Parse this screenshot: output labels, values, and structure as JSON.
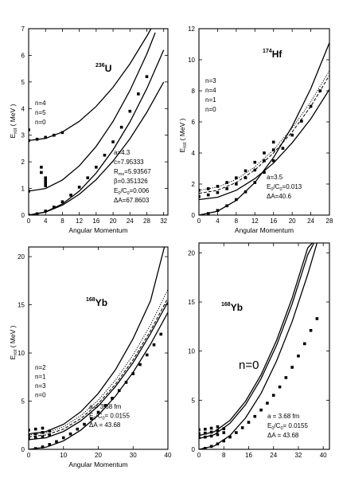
{
  "chart_data": [
    {
      "type": "line",
      "nucleus_mass": "236",
      "nucleus_symbol": "U",
      "ylabel_main": "E",
      "ylabel_sub": "rot",
      "ylabel_unit": " ( MeV )",
      "xlabel": "Angular Momentum",
      "xlim": [
        0,
        33
      ],
      "ylim": [
        0,
        7
      ],
      "x_ticks": [
        "0",
        "4",
        "8",
        "12",
        "16",
        "20",
        "24",
        "28",
        "32"
      ],
      "y_ticks": [
        "0",
        "1",
        "2",
        "3",
        "4",
        "5",
        "6",
        "7"
      ],
      "legend_lines": [
        "n=4",
        "n=5",
        "n=0"
      ],
      "params": [
        "a=4.3",
        "c=7.95333",
        "R",
        "ms",
        "=5.93567",
        "β=0.351326",
        "E",
        "0",
        "/C",
        "0",
        "=0.006",
        "ΔA=67.8603"
      ],
      "series": [
        {
          "style": "solid",
          "x": [
            0,
            4,
            8,
            12,
            16,
            20,
            24,
            28,
            32
          ],
          "y": [
            0.0,
            0.11,
            0.37,
            0.78,
            1.33,
            2.03,
            2.87,
            3.86,
            5.0
          ]
        },
        {
          "style": "solid",
          "x": [
            0,
            4,
            8,
            12,
            16,
            20,
            24,
            28,
            32
          ],
          "y": [
            0.0,
            0.12,
            0.42,
            0.9,
            1.58,
            2.45,
            3.5,
            4.75,
            6.2
          ]
        },
        {
          "style": "solid",
          "x": [
            0,
            4,
            8,
            12,
            16,
            20,
            24,
            28,
            30
          ],
          "y": [
            0.9,
            1.0,
            1.32,
            1.85,
            2.58,
            3.52,
            4.68,
            6.05,
            6.85
          ]
        },
        {
          "style": "solid",
          "x": [
            0,
            4,
            8,
            12,
            16,
            20,
            24,
            28,
            29
          ],
          "y": [
            2.8,
            2.88,
            3.12,
            3.52,
            4.08,
            4.8,
            5.68,
            6.72,
            7.0
          ]
        }
      ],
      "points": [
        {
          "x": [
            0,
            2,
            4,
            6,
            8,
            10,
            12,
            14,
            16,
            18,
            20,
            22,
            24,
            26,
            28
          ],
          "y": [
            0.0,
            0.05,
            0.15,
            0.3,
            0.5,
            0.75,
            1.05,
            1.4,
            1.8,
            2.25,
            2.75,
            3.3,
            3.9,
            4.55,
            5.2
          ]
        },
        {
          "x": [
            0,
            2,
            4,
            6,
            8
          ],
          "y": [
            2.8,
            2.85,
            2.92,
            3.0,
            3.1
          ]
        },
        {
          "x": [
            0,
            4,
            4,
            4,
            4,
            3,
            3
          ],
          "y": [
            0.9,
            1.2,
            1.3,
            1.4,
            1.1,
            1.6,
            1.8
          ]
        },
        {
          "x": [
            0
          ],
          "y": [
            3.2
          ]
        }
      ]
    },
    {
      "type": "line",
      "nucleus_mass": "174",
      "nucleus_symbol": "Hf",
      "ylabel_main": "E",
      "ylabel_sub": "rot",
      "ylabel_unit": " ( MeV )",
      "xlabel": "Angular Momentum",
      "xlim": [
        0,
        28
      ],
      "ylim": [
        0,
        12
      ],
      "x_ticks": [
        "0",
        "4",
        "8",
        "12",
        "16",
        "20",
        "24",
        "28"
      ],
      "y_ticks": [
        "0",
        "2",
        "4",
        "6",
        "8",
        "10",
        "12"
      ],
      "legend_lines": [
        "n=3",
        "n=4",
        "n=1",
        "n=0"
      ],
      "params": [
        "a=3.5",
        "E",
        "0",
        "/C",
        "0",
        "=0.013",
        "ΔA=40.6"
      ],
      "series": [
        {
          "style": "solid",
          "x": [
            0,
            4,
            8,
            12,
            16,
            20,
            24,
            28
          ],
          "y": [
            0.0,
            0.25,
            0.95,
            2.1,
            3.7,
            5.7,
            8.15,
            11.1
          ]
        },
        {
          "style": "solid",
          "x": [
            0,
            4,
            8,
            12,
            16,
            20,
            24,
            28
          ],
          "y": [
            1.0,
            1.15,
            1.6,
            2.35,
            3.35,
            4.65,
            6.2,
            8.1
          ]
        },
        {
          "style": "dashed",
          "x": [
            0,
            4,
            8,
            12,
            16,
            20,
            24,
            28
          ],
          "y": [
            1.4,
            1.6,
            2.1,
            2.9,
            4.0,
            5.35,
            7.0,
            9.0
          ]
        },
        {
          "style": "dotted",
          "x": [
            0,
            4,
            8,
            12,
            16,
            20,
            24,
            28
          ],
          "y": [
            1.6,
            1.8,
            2.3,
            3.1,
            4.2,
            5.6,
            7.3,
            9.3
          ]
        }
      ],
      "points": [
        {
          "x": [
            2,
            4,
            6,
            8,
            10,
            12,
            14,
            16,
            18,
            20,
            22,
            24,
            26
          ],
          "y": [
            0.1,
            0.3,
            0.6,
            1.0,
            1.5,
            2.1,
            2.75,
            3.5,
            4.3,
            5.15,
            6.05,
            7.0,
            8.0
          ]
        },
        {
          "x": [
            0,
            2,
            4,
            6,
            8,
            10,
            12,
            14,
            16
          ],
          "y": [
            1.2,
            1.3,
            1.45,
            1.7,
            2.0,
            2.4,
            2.9,
            3.5,
            4.2
          ]
        },
        {
          "x": [
            0,
            2,
            4,
            6,
            8,
            10,
            12,
            14,
            16
          ],
          "y": [
            1.6,
            1.7,
            1.85,
            2.1,
            2.4,
            2.85,
            3.4,
            4.0,
            4.7
          ]
        }
      ]
    },
    {
      "type": "line",
      "nucleus_mass": "168",
      "nucleus_symbol": "Yb",
      "ylabel_main": "E",
      "ylabel_sub": "rot",
      "ylabel_unit": " ( MeV )",
      "xlabel": "Angular Momentum",
      "xlim": [
        0,
        40
      ],
      "ylim": [
        0,
        21
      ],
      "x_ticks": [
        "0",
        "10",
        "20",
        "30",
        "40"
      ],
      "y_ticks": [
        "0",
        "5",
        "10",
        "15",
        "20"
      ],
      "legend_lines": [
        "n=2",
        "n=1",
        "n=3",
        "n=0"
      ],
      "params": [
        "a = 3.68 fm",
        "E",
        "0",
        "/C",
        "0",
        " = 0.0155",
        "ΔA = 43.68"
      ],
      "series": [
        {
          "style": "solid",
          "x": [
            0,
            5,
            10,
            15,
            20,
            25,
            30,
            35,
            40
          ],
          "y": [
            0.0,
            0.22,
            0.88,
            2.0,
            3.55,
            5.55,
            8.0,
            10.9,
            14.2
          ]
        },
        {
          "style": "solid",
          "x": [
            0,
            5,
            10,
            15,
            20,
            25,
            30,
            35,
            40
          ],
          "y": [
            1.0,
            1.2,
            1.85,
            2.95,
            4.5,
            6.55,
            9.0,
            12.0,
            15.3
          ]
        },
        {
          "style": "dashed",
          "x": [
            0,
            5,
            10,
            15,
            20,
            25,
            30,
            35,
            40
          ],
          "y": [
            1.3,
            1.5,
            2.1,
            3.2,
            4.75,
            6.8,
            9.3,
            12.3,
            15.7
          ]
        },
        {
          "style": "solid",
          "x": [
            0,
            5,
            10,
            15,
            20,
            25,
            30,
            35,
            39
          ],
          "y": [
            1.6,
            1.85,
            2.6,
            3.9,
            5.8,
            8.3,
            11.5,
            15.4,
            21.0
          ]
        },
        {
          "style": "dotted",
          "x": [
            0,
            5,
            10,
            15,
            20,
            25,
            30,
            35,
            40
          ],
          "y": [
            1.5,
            1.7,
            2.35,
            3.5,
            5.1,
            7.2,
            9.8,
            12.9,
            16.6
          ]
        }
      ],
      "points": [
        {
          "x": [
            2,
            4,
            6,
            8,
            10,
            12,
            14,
            16,
            18,
            20,
            22,
            24,
            26,
            28,
            30,
            32,
            34,
            36,
            38
          ],
          "y": [
            0.08,
            0.25,
            0.5,
            0.8,
            1.2,
            1.6,
            2.1,
            2.6,
            3.2,
            3.85,
            4.55,
            5.3,
            6.1,
            6.95,
            7.85,
            8.8,
            9.8,
            10.85,
            11.95
          ]
        },
        {
          "x": [
            0,
            2,
            4,
            6
          ],
          "y": [
            1.1,
            1.2,
            1.3,
            1.5
          ]
        },
        {
          "x": [
            0,
            2,
            4,
            6
          ],
          "y": [
            1.5,
            1.6,
            1.75,
            1.9
          ]
        },
        {
          "x": [
            0,
            2,
            4
          ],
          "y": [
            2.0,
            2.1,
            2.2
          ]
        }
      ]
    },
    {
      "type": "line",
      "nucleus_mass": "168",
      "nucleus_symbol": "Yb",
      "annotation": "n=0",
      "xlim": [
        0,
        42
      ],
      "ylim": [
        0,
        21
      ],
      "x_ticks": [
        "0",
        "8",
        "16",
        "24",
        "32",
        "40"
      ],
      "y_ticks": [
        "0",
        "5",
        "10",
        "15",
        "20"
      ],
      "params": [
        "a = 3.68 fm",
        "E",
        "0",
        "/C",
        "0",
        " = 0.0155",
        "ΔA = 43.68"
      ],
      "series": [
        {
          "style": "solid",
          "x": [
            0,
            5,
            10,
            15,
            20,
            25,
            30,
            35,
            38
          ],
          "y": [
            0.0,
            0.35,
            1.4,
            3.2,
            5.7,
            9.0,
            13.0,
            17.8,
            21.0
          ]
        },
        {
          "style": "solid",
          "x": [
            0,
            5,
            10,
            15,
            20,
            25,
            30,
            35,
            37
          ],
          "y": [
            1.1,
            1.5,
            2.65,
            4.55,
            7.2,
            10.6,
            14.8,
            19.8,
            21.0
          ]
        },
        {
          "style": "solid",
          "x": [
            0,
            5,
            10,
            15,
            20,
            25,
            30,
            35,
            36.5
          ],
          "y": [
            1.4,
            1.8,
            2.95,
            4.9,
            7.6,
            11.1,
            15.4,
            20.5,
            21.0
          ]
        }
      ],
      "points": [
        {
          "x": [
            2,
            4,
            6,
            8,
            10,
            12,
            14,
            16,
            18,
            20,
            22,
            24,
            26,
            28,
            30,
            32,
            34,
            36,
            38
          ],
          "y": [
            0.1,
            0.3,
            0.55,
            0.85,
            1.25,
            1.7,
            2.2,
            2.75,
            3.35,
            4.0,
            4.7,
            5.5,
            6.35,
            7.3,
            8.35,
            9.5,
            10.75,
            12.1,
            13.3
          ]
        },
        {
          "x": [
            0,
            2,
            4,
            6,
            8
          ],
          "y": [
            1.2,
            1.25,
            1.35,
            1.5,
            1.7
          ]
        },
        {
          "x": [
            0,
            2,
            4,
            6,
            8
          ],
          "y": [
            1.6,
            1.65,
            1.75,
            1.9,
            2.1
          ]
        },
        {
          "x": [
            0,
            2,
            4,
            6
          ],
          "y": [
            2.0,
            2.05,
            2.15,
            2.3
          ]
        }
      ]
    }
  ]
}
